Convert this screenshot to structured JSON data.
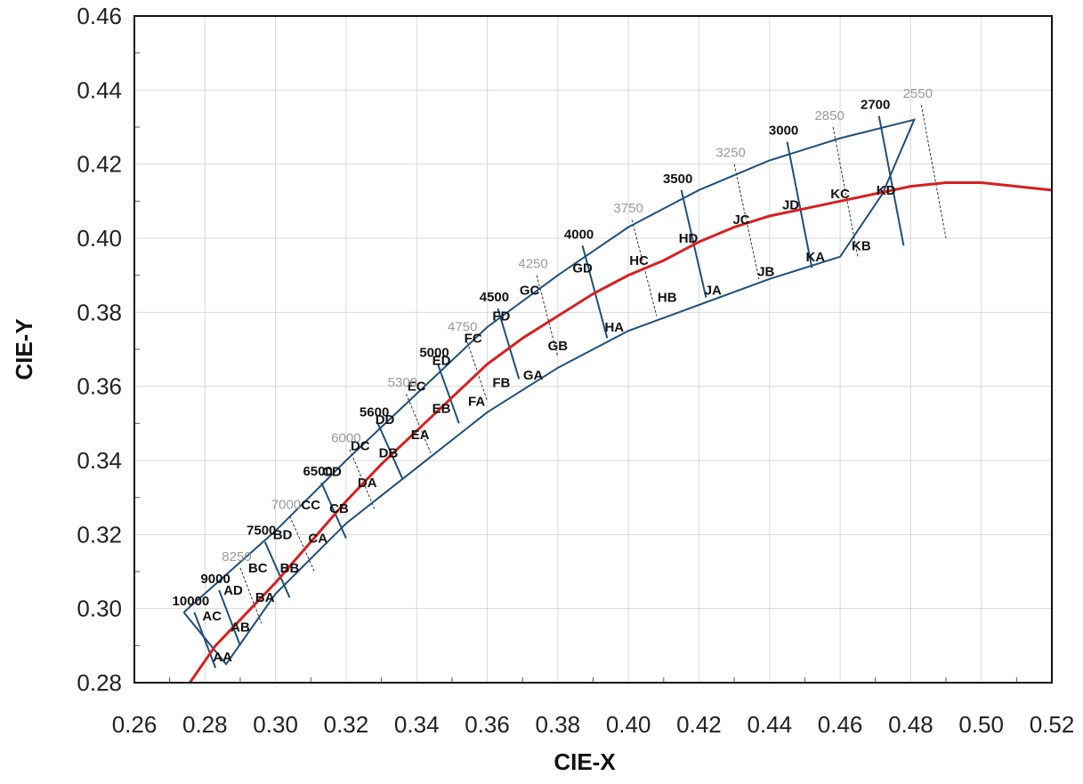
{
  "chart_data": {
    "type": "line",
    "xlabel": "CIE-X",
    "ylabel": "CIE-Y",
    "xlim": [
      0.26,
      0.52
    ],
    "ylim": [
      0.28,
      0.46
    ],
    "x_ticks": [
      "0.26",
      "0.28",
      "0.30",
      "0.32",
      "0.34",
      "0.36",
      "0.38",
      "0.40",
      "0.42",
      "0.44",
      "0.46",
      "0.48",
      "0.50",
      "0.52"
    ],
    "y_ticks": [
      "0.28",
      "0.30",
      "0.32",
      "0.34",
      "0.36",
      "0.38",
      "0.40",
      "0.42",
      "0.44",
      "0.46"
    ],
    "grid": true,
    "colors": {
      "planckian": "#d62020",
      "bins": "#1f4e79",
      "grid": "#d9d9d9",
      "faint_label": "#9a9a9a"
    },
    "planckian_locus": [
      {
        "x": 0.275,
        "y": 0.279
      },
      {
        "x": 0.283,
        "y": 0.29
      },
      {
        "x": 0.29,
        "y": 0.297
      },
      {
        "x": 0.3,
        "y": 0.307
      },
      {
        "x": 0.31,
        "y": 0.318
      },
      {
        "x": 0.32,
        "y": 0.329
      },
      {
        "x": 0.33,
        "y": 0.339
      },
      {
        "x": 0.34,
        "y": 0.348
      },
      {
        "x": 0.35,
        "y": 0.357
      },
      {
        "x": 0.36,
        "y": 0.366
      },
      {
        "x": 0.37,
        "y": 0.373
      },
      {
        "x": 0.38,
        "y": 0.379
      },
      {
        "x": 0.39,
        "y": 0.385
      },
      {
        "x": 0.4,
        "y": 0.39
      },
      {
        "x": 0.41,
        "y": 0.394
      },
      {
        "x": 0.42,
        "y": 0.399
      },
      {
        "x": 0.43,
        "y": 0.403
      },
      {
        "x": 0.44,
        "y": 0.406
      },
      {
        "x": 0.45,
        "y": 0.408
      },
      {
        "x": 0.46,
        "y": 0.41
      },
      {
        "x": 0.47,
        "y": 0.412
      },
      {
        "x": 0.48,
        "y": 0.414
      },
      {
        "x": 0.49,
        "y": 0.415
      },
      {
        "x": 0.5,
        "y": 0.415
      },
      {
        "x": 0.51,
        "y": 0.414
      },
      {
        "x": 0.52,
        "y": 0.413
      }
    ],
    "cct_lines": [
      {
        "label": "10000",
        "style": "strong",
        "top": [
          0.277,
          0.299
        ],
        "bottom": [
          0.283,
          0.284
        ]
      },
      {
        "label": "9000",
        "style": "strong",
        "top": [
          0.284,
          0.305
        ],
        "bottom": [
          0.29,
          0.29
        ]
      },
      {
        "label": "8250",
        "style": "faint",
        "top": [
          0.29,
          0.311
        ],
        "bottom": [
          0.296,
          0.296
        ]
      },
      {
        "label": "7500",
        "style": "strong",
        "top": [
          0.297,
          0.318
        ],
        "bottom": [
          0.304,
          0.303
        ]
      },
      {
        "label": "7000",
        "style": "faint",
        "top": [
          0.304,
          0.325
        ],
        "bottom": [
          0.311,
          0.31
        ]
      },
      {
        "label": "6500",
        "style": "strong",
        "top": [
          0.313,
          0.334
        ],
        "bottom": [
          0.32,
          0.319
        ]
      },
      {
        "label": "6000",
        "style": "faint",
        "top": [
          0.321,
          0.343
        ],
        "bottom": [
          0.328,
          0.327
        ]
      },
      {
        "label": "5600",
        "style": "strong",
        "top": [
          0.329,
          0.35
        ],
        "bottom": [
          0.336,
          0.335
        ]
      },
      {
        "label": "5300",
        "style": "faint",
        "top": [
          0.337,
          0.358
        ],
        "bottom": [
          0.344,
          0.342
        ]
      },
      {
        "label": "5000",
        "style": "strong",
        "top": [
          0.346,
          0.366
        ],
        "bottom": [
          0.352,
          0.35
        ]
      },
      {
        "label": "4750",
        "style": "faint",
        "top": [
          0.354,
          0.373
        ],
        "bottom": [
          0.36,
          0.356
        ]
      },
      {
        "label": "4500",
        "style": "strong",
        "top": [
          0.363,
          0.381
        ],
        "bottom": [
          0.369,
          0.362
        ]
      },
      {
        "label": "4250",
        "style": "faint",
        "top": [
          0.374,
          0.39
        ],
        "bottom": [
          0.38,
          0.368
        ]
      },
      {
        "label": "4000",
        "style": "strong",
        "top": [
          0.387,
          0.398
        ],
        "bottom": [
          0.394,
          0.373
        ]
      },
      {
        "label": "3750",
        "style": "faint",
        "top": [
          0.401,
          0.405
        ],
        "bottom": [
          0.408,
          0.379
        ]
      },
      {
        "label": "3500",
        "style": "strong",
        "top": [
          0.415,
          0.413
        ],
        "bottom": [
          0.422,
          0.384
        ]
      },
      {
        "label": "3250",
        "style": "faint",
        "top": [
          0.43,
          0.42
        ],
        "bottom": [
          0.437,
          0.389
        ]
      },
      {
        "label": "3000",
        "style": "strong",
        "top": [
          0.445,
          0.426
        ],
        "bottom": [
          0.452,
          0.392
        ]
      },
      {
        "label": "2850",
        "style": "faint",
        "top": [
          0.458,
          0.43
        ],
        "bottom": [
          0.465,
          0.395
        ]
      },
      {
        "label": "2700",
        "style": "strong",
        "top": [
          0.471,
          0.433
        ],
        "bottom": [
          0.478,
          0.398
        ]
      },
      {
        "label": "2550",
        "style": "faint",
        "top": [
          0.483,
          0.436
        ],
        "bottom": [
          0.49,
          0.4
        ]
      }
    ],
    "bin_outline": [
      {
        "x": 0.274,
        "y": 0.299
      },
      {
        "x": 0.3,
        "y": 0.321
      },
      {
        "x": 0.32,
        "y": 0.34
      },
      {
        "x": 0.34,
        "y": 0.358
      },
      {
        "x": 0.36,
        "y": 0.376
      },
      {
        "x": 0.38,
        "y": 0.39
      },
      {
        "x": 0.4,
        "y": 0.403
      },
      {
        "x": 0.42,
        "y": 0.413
      },
      {
        "x": 0.44,
        "y": 0.421
      },
      {
        "x": 0.46,
        "y": 0.427
      },
      {
        "x": 0.481,
        "y": 0.432
      },
      {
        "x": 0.472,
        "y": 0.412
      },
      {
        "x": 0.46,
        "y": 0.395
      },
      {
        "x": 0.44,
        "y": 0.389
      },
      {
        "x": 0.42,
        "y": 0.382
      },
      {
        "x": 0.4,
        "y": 0.375
      },
      {
        "x": 0.38,
        "y": 0.365
      },
      {
        "x": 0.36,
        "y": 0.353
      },
      {
        "x": 0.34,
        "y": 0.338
      },
      {
        "x": 0.32,
        "y": 0.323
      },
      {
        "x": 0.3,
        "y": 0.304
      },
      {
        "x": 0.286,
        "y": 0.285
      },
      {
        "x": 0.274,
        "y": 0.299
      }
    ],
    "bin_labels": [
      {
        "label": "AA",
        "x": 0.285,
        "y": 0.287
      },
      {
        "label": "AB",
        "x": 0.29,
        "y": 0.295
      },
      {
        "label": "AC",
        "x": 0.282,
        "y": 0.298
      },
      {
        "label": "AD",
        "x": 0.288,
        "y": 0.305
      },
      {
        "label": "BA",
        "x": 0.297,
        "y": 0.303
      },
      {
        "label": "BB",
        "x": 0.304,
        "y": 0.311
      },
      {
        "label": "BC",
        "x": 0.295,
        "y": 0.311
      },
      {
        "label": "BD",
        "x": 0.302,
        "y": 0.32
      },
      {
        "label": "CA",
        "x": 0.312,
        "y": 0.319
      },
      {
        "label": "CB",
        "x": 0.318,
        "y": 0.327
      },
      {
        "label": "CC",
        "x": 0.31,
        "y": 0.328
      },
      {
        "label": "CD",
        "x": 0.316,
        "y": 0.337
      },
      {
        "label": "DA",
        "x": 0.326,
        "y": 0.334
      },
      {
        "label": "DB",
        "x": 0.332,
        "y": 0.342
      },
      {
        "label": "DC",
        "x": 0.324,
        "y": 0.344
      },
      {
        "label": "DD",
        "x": 0.331,
        "y": 0.351
      },
      {
        "label": "EA",
        "x": 0.341,
        "y": 0.347
      },
      {
        "label": "EB",
        "x": 0.347,
        "y": 0.354
      },
      {
        "label": "EC",
        "x": 0.34,
        "y": 0.36
      },
      {
        "label": "ED",
        "x": 0.347,
        "y": 0.367
      },
      {
        "label": "FA",
        "x": 0.357,
        "y": 0.356
      },
      {
        "label": "FB",
        "x": 0.364,
        "y": 0.361
      },
      {
        "label": "FC",
        "x": 0.356,
        "y": 0.373
      },
      {
        "label": "FD",
        "x": 0.364,
        "y": 0.379
      },
      {
        "label": "GA",
        "x": 0.373,
        "y": 0.363
      },
      {
        "label": "GB",
        "x": 0.38,
        "y": 0.371
      },
      {
        "label": "GC",
        "x": 0.372,
        "y": 0.386
      },
      {
        "label": "GD",
        "x": 0.387,
        "y": 0.392
      },
      {
        "label": "HA",
        "x": 0.396,
        "y": 0.376
      },
      {
        "label": "HB",
        "x": 0.411,
        "y": 0.384
      },
      {
        "label": "HC",
        "x": 0.403,
        "y": 0.394
      },
      {
        "label": "HD",
        "x": 0.417,
        "y": 0.4
      },
      {
        "label": "JA",
        "x": 0.424,
        "y": 0.386
      },
      {
        "label": "JB",
        "x": 0.439,
        "y": 0.391
      },
      {
        "label": "JC",
        "x": 0.432,
        "y": 0.405
      },
      {
        "label": "JD",
        "x": 0.446,
        "y": 0.409
      },
      {
        "label": "KA",
        "x": 0.453,
        "y": 0.395
      },
      {
        "label": "KB",
        "x": 0.466,
        "y": 0.398
      },
      {
        "label": "KC",
        "x": 0.46,
        "y": 0.412
      },
      {
        "label": "KD",
        "x": 0.473,
        "y": 0.413
      }
    ]
  }
}
